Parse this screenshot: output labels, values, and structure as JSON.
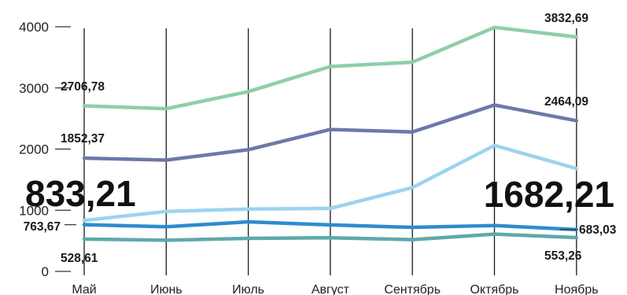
{
  "chart_data": {
    "type": "line",
    "x": [
      "Май",
      "Июнь",
      "Июль",
      "Август",
      "Сентябрь",
      "Октябрь",
      "Ноябрь"
    ],
    "yticks": [
      "0",
      "1000",
      "2000",
      "3000",
      "4000"
    ],
    "ylim": [
      0,
      4000
    ],
    "grid": "vertical lines at each month",
    "legend": "none",
    "series": [
      {
        "color": "#8fceaa",
        "values": [
          2706.78,
          2660,
          2940,
          3350,
          3420,
          3990,
          3832.69
        ],
        "start_label": "2706,78",
        "end_label": "3832,69"
      },
      {
        "color": "#6e78a8",
        "values": [
          1852.37,
          1820,
          1990,
          2320,
          2280,
          2720,
          2464.09
        ],
        "start_label": "1852,37",
        "end_label": "2464,09"
      },
      {
        "color": "#9dd3f0",
        "values": [
          833.21,
          980,
          1020,
          1030,
          1370,
          2060,
          1682.21
        ],
        "start_label": "833,21",
        "end_label": "1682,21"
      },
      {
        "color": "#2d8ccf",
        "values": [
          763.67,
          730,
          810,
          760,
          720,
          750,
          683.03
        ],
        "start_label": "763,67",
        "end_label": "683,03"
      },
      {
        "color": "#5fa8ad",
        "values": [
          528.61,
          510,
          540,
          550,
          520,
          610,
          553.26
        ],
        "start_label": "528,61",
        "end_label": "553,26"
      }
    ]
  }
}
